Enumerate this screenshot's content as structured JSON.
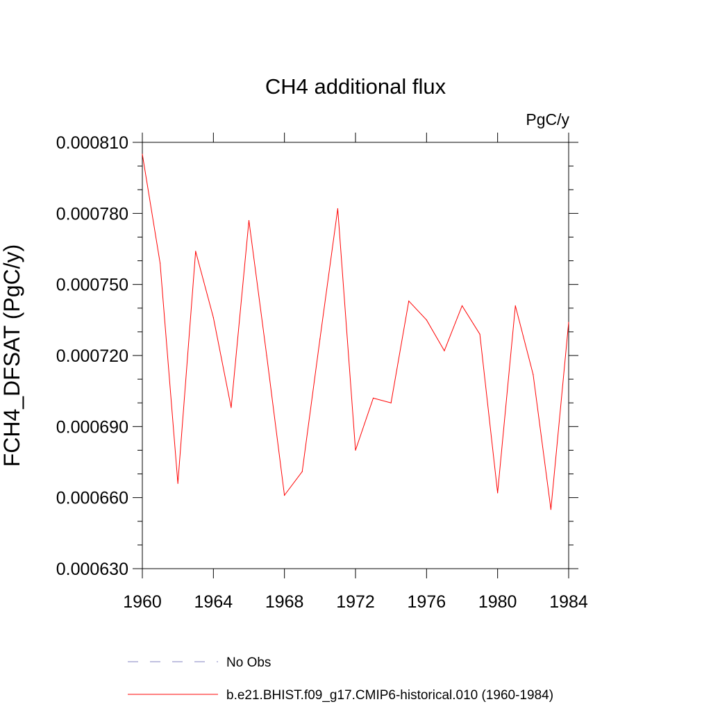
{
  "chart_data": {
    "type": "line",
    "title": "CH4 additional flux",
    "units": "PgC/y",
    "ylabel": "FCH4_DFSAT  (PgC/y)",
    "xlabel": "",
    "xlim": [
      1960,
      1984
    ],
    "ylim": [
      0.00063,
      0.00081
    ],
    "x_ticks": [
      1960,
      1964,
      1968,
      1972,
      1976,
      1980,
      1984
    ],
    "x_tick_labels": [
      "1960",
      "1964",
      "1968",
      "1972",
      "1976",
      "1980",
      "1984"
    ],
    "y_ticks": [
      0.00063,
      0.00066,
      0.00069,
      0.00072,
      0.00075,
      0.00078,
      0.00081
    ],
    "y_tick_labels": [
      "0.000630",
      "0.000660",
      "0.000690",
      "0.000720",
      "0.000750",
      "0.000780",
      "0.000810"
    ],
    "grid": false,
    "legend_position": "bottom",
    "series": [
      {
        "name": "b.e21.BHIST.f09_g17.CMIP6-historical.010 (1960-1984)",
        "color": "#ff0000",
        "style": "solid",
        "x": [
          1960,
          1961,
          1962,
          1963,
          1964,
          1965,
          1966,
          1967,
          1968,
          1969,
          1970,
          1971,
          1972,
          1973,
          1974,
          1975,
          1976,
          1977,
          1978,
          1979,
          1980,
          1981,
          1982,
          1983,
          1984
        ],
        "y": [
          0.000805,
          0.000759,
          0.000666,
          0.000764,
          0.000736,
          0.000698,
          0.000777,
          0.00072,
          0.000661,
          0.000671,
          0.000727,
          0.000782,
          0.00068,
          0.000702,
          0.0007,
          0.000743,
          0.000735,
          0.000722,
          0.000741,
          0.000729,
          0.000662,
          0.000741,
          0.000712,
          0.000655,
          0.000734
        ]
      }
    ],
    "legend": [
      {
        "label": "No Obs",
        "color": "#8080c0",
        "style": "dashed"
      },
      {
        "label": "b.e21.BHIST.f09_g17.CMIP6-historical.010 (1960-1984)",
        "color": "#ff0000",
        "style": "solid"
      }
    ]
  }
}
